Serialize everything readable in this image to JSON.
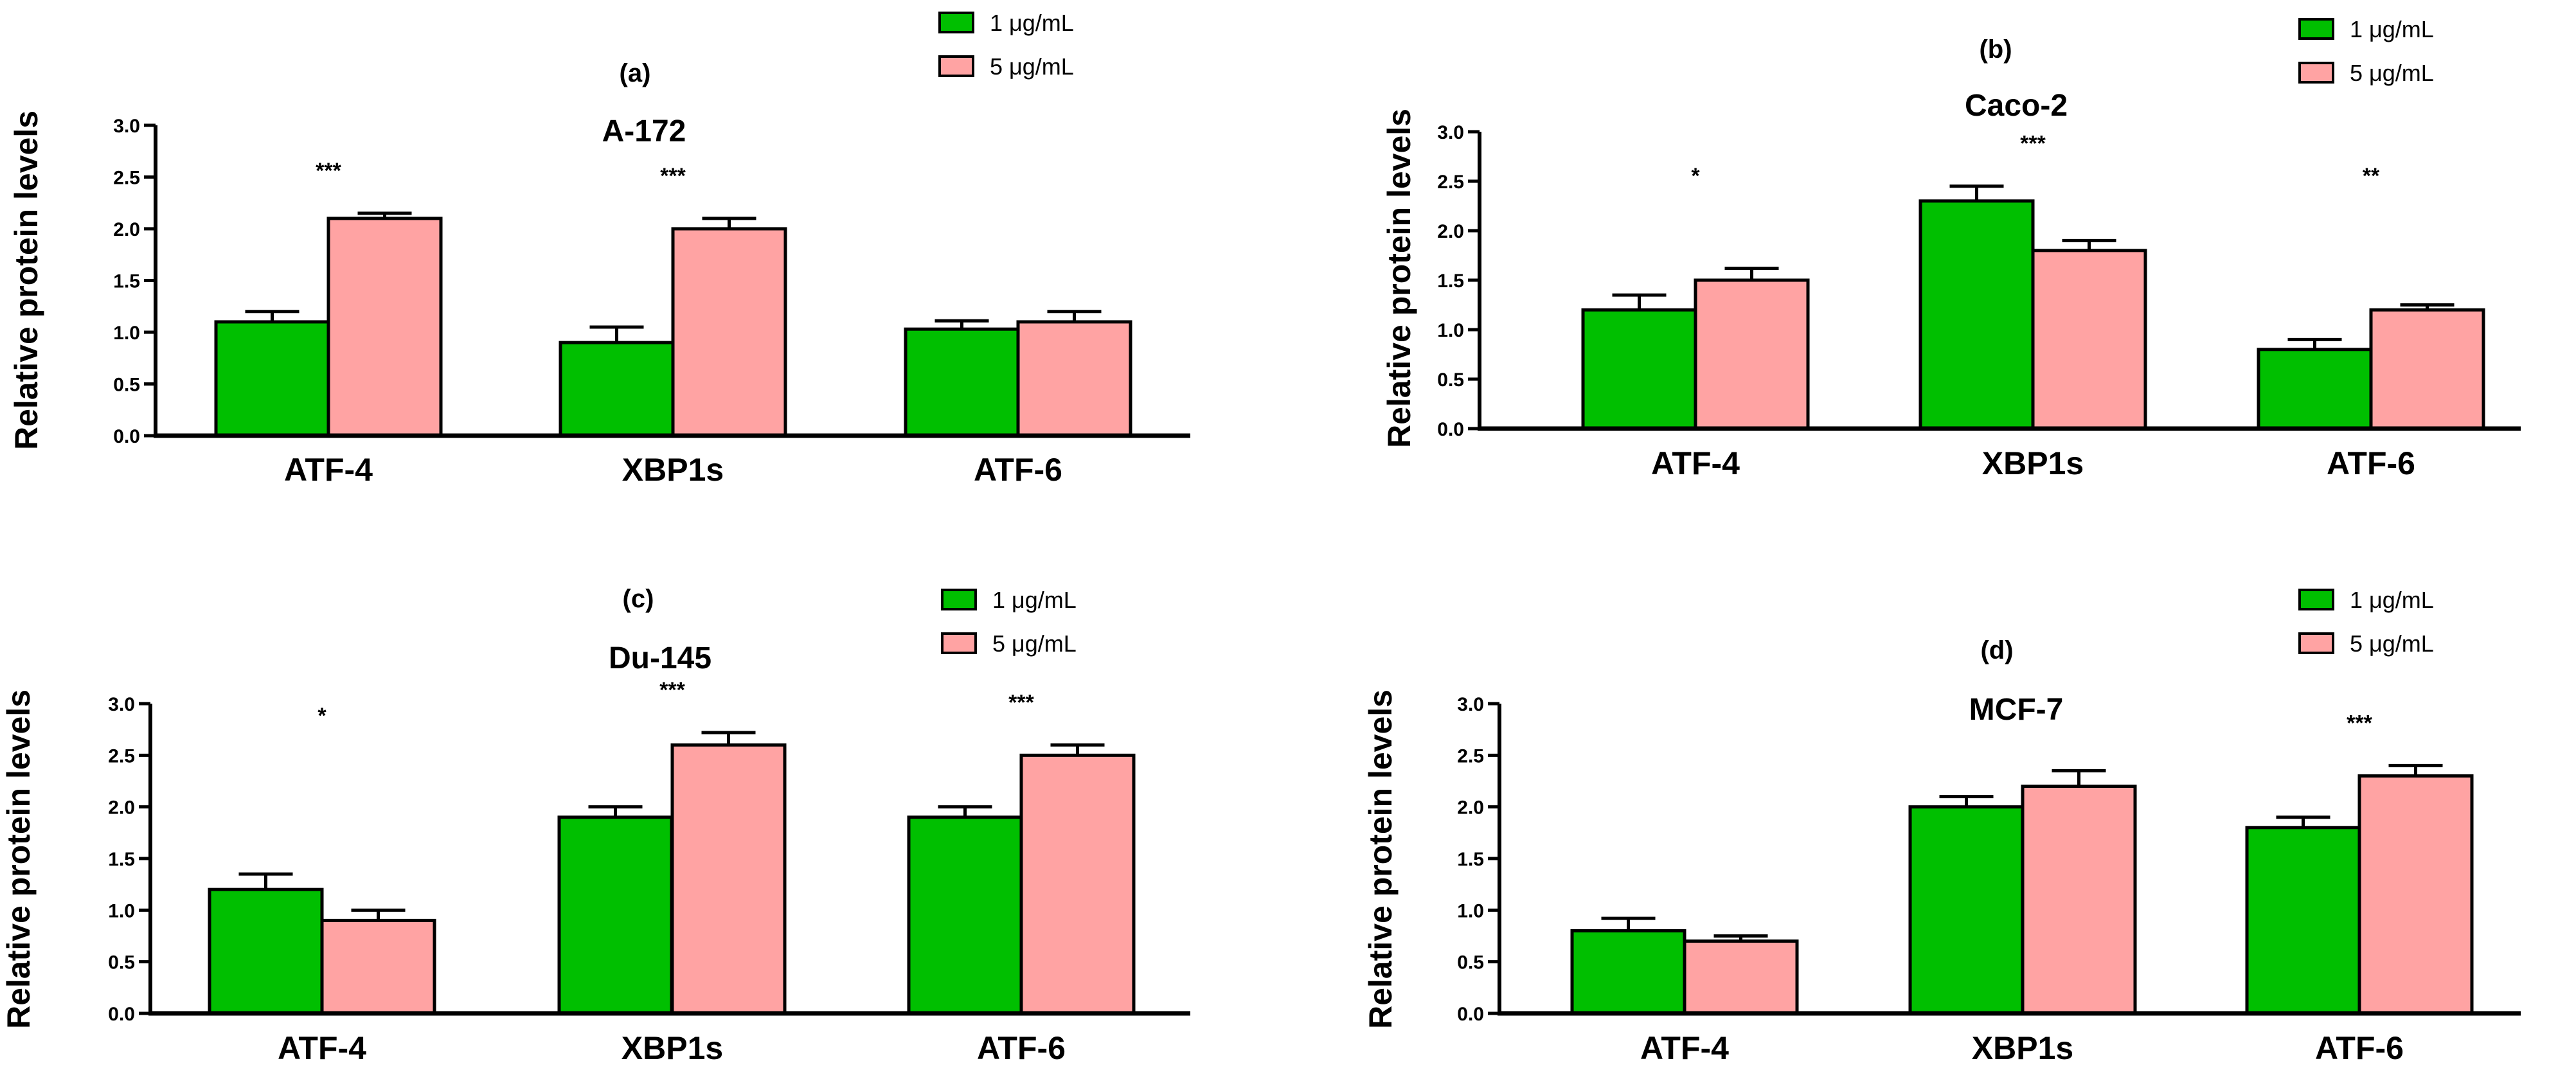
{
  "colors": {
    "series_1": "#00bf00",
    "series_2": "#ffa3a3",
    "axis": "#000000"
  },
  "chart_data": [
    {
      "type": "bar",
      "panel": "(a)",
      "title": "A-172",
      "ylabel": "Relative protein levels",
      "xlabel": "",
      "categories": [
        "ATF-4",
        "XBP1s",
        "ATF-6"
      ],
      "ylim": [
        0,
        3.0
      ],
      "yticks": [
        "0.0",
        "0.5",
        "1.0",
        "1.5",
        "2.0",
        "2.5",
        "3.0"
      ],
      "legend": "top-right",
      "series": [
        {
          "name": "1 μg/mL",
          "values": [
            1.1,
            0.9,
            1.03
          ],
          "errors": [
            0.1,
            0.15,
            0.08
          ]
        },
        {
          "name": "5 μg/mL",
          "values": [
            2.1,
            2.0,
            1.1
          ],
          "errors": [
            0.05,
            0.1,
            0.1
          ]
        }
      ],
      "significance": [
        "***",
        "***",
        ""
      ]
    },
    {
      "type": "bar",
      "panel": "(b)",
      "title": "Caco-2",
      "ylabel": "Relative protein levels",
      "xlabel": "",
      "categories": [
        "ATF-4",
        "XBP1s",
        "ATF-6"
      ],
      "ylim": [
        0,
        3.0
      ],
      "yticks": [
        "0.0",
        "0.5",
        "1.0",
        "1.5",
        "2.0",
        "2.5",
        "3.0"
      ],
      "legend": "top-right",
      "series": [
        {
          "name": "1 μg/mL",
          "values": [
            1.2,
            2.3,
            0.8
          ],
          "errors": [
            0.15,
            0.15,
            0.1
          ]
        },
        {
          "name": "5 μg/mL",
          "values": [
            1.5,
            1.8,
            1.2
          ],
          "errors": [
            0.12,
            0.1,
            0.05
          ]
        }
      ],
      "significance": [
        "*",
        "***",
        "**"
      ]
    },
    {
      "type": "bar",
      "panel": "(c)",
      "title": "Du-145",
      "ylabel": "Relative protein levels",
      "xlabel": "",
      "categories": [
        "ATF-4",
        "XBP1s",
        "ATF-6"
      ],
      "ylim": [
        0,
        3.0
      ],
      "yticks": [
        "0.0",
        "0.5",
        "1.0",
        "1.5",
        "2.0",
        "2.5",
        "3.0"
      ],
      "legend": "top-right",
      "series": [
        {
          "name": "1 μg/mL",
          "values": [
            1.2,
            1.9,
            1.9
          ],
          "errors": [
            0.15,
            0.1,
            0.1
          ]
        },
        {
          "name": "5 μg/mL",
          "values": [
            0.9,
            2.6,
            2.5
          ],
          "errors": [
            0.1,
            0.12,
            0.1
          ]
        }
      ],
      "significance": [
        "*",
        "***",
        "***"
      ]
    },
    {
      "type": "bar",
      "panel": "(d)",
      "title": "MCF-7",
      "ylabel": "Relative protein levels",
      "xlabel": "",
      "categories": [
        "ATF-4",
        "XBP1s",
        "ATF-6"
      ],
      "ylim": [
        0,
        3.0
      ],
      "yticks": [
        "0.0",
        "0.5",
        "1.0",
        "1.5",
        "2.0",
        "2.5",
        "3.0"
      ],
      "legend": "top-right",
      "series": [
        {
          "name": "1 μg/mL",
          "values": [
            0.8,
            2.0,
            1.8
          ],
          "errors": [
            0.12,
            0.1,
            0.1
          ]
        },
        {
          "name": "5 μg/mL",
          "values": [
            0.7,
            2.2,
            2.3
          ],
          "errors": [
            0.05,
            0.15,
            0.1
          ]
        }
      ],
      "significance": [
        "",
        "",
        "***"
      ]
    }
  ]
}
